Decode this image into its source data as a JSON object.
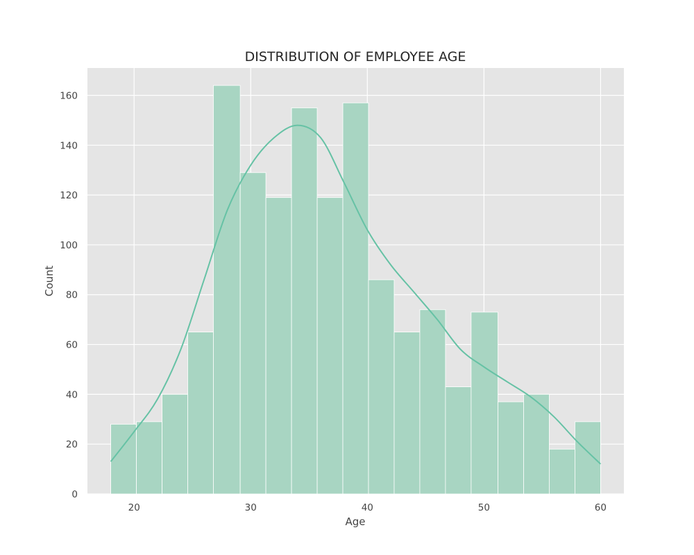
{
  "chart_data": {
    "type": "bar",
    "subtype": "histogram",
    "title": "DISTRIBUTION OF EMPLOYEE AGE",
    "xlabel": "Age",
    "ylabel": "Count",
    "xlim": [
      16,
      62
    ],
    "ylim": [
      0,
      171
    ],
    "xticks": [
      20,
      30,
      40,
      50,
      60
    ],
    "yticks": [
      0,
      20,
      40,
      60,
      80,
      100,
      120,
      140,
      160
    ],
    "grid": true,
    "bins": [
      {
        "start": 18.0,
        "end": 20.2,
        "count": 28
      },
      {
        "start": 20.2,
        "end": 22.4,
        "count": 29
      },
      {
        "start": 22.4,
        "end": 24.6,
        "count": 40
      },
      {
        "start": 24.6,
        "end": 26.8,
        "count": 65
      },
      {
        "start": 26.8,
        "end": 29.1,
        "count": 164
      },
      {
        "start": 29.1,
        "end": 31.3,
        "count": 129
      },
      {
        "start": 31.3,
        "end": 33.5,
        "count": 119
      },
      {
        "start": 33.5,
        "end": 35.7,
        "count": 155
      },
      {
        "start": 35.7,
        "end": 37.9,
        "count": 119
      },
      {
        "start": 37.9,
        "end": 40.1,
        "count": 157
      },
      {
        "start": 40.1,
        "end": 42.3,
        "count": 86
      },
      {
        "start": 42.3,
        "end": 44.5,
        "count": 65
      },
      {
        "start": 44.5,
        "end": 46.7,
        "count": 74
      },
      {
        "start": 46.7,
        "end": 48.9,
        "count": 43
      },
      {
        "start": 48.9,
        "end": 51.2,
        "count": 73
      },
      {
        "start": 51.2,
        "end": 53.4,
        "count": 37
      },
      {
        "start": 53.4,
        "end": 55.6,
        "count": 40
      },
      {
        "start": 55.6,
        "end": 57.8,
        "count": 18
      },
      {
        "start": 57.8,
        "end": 60.0,
        "count": 29
      }
    ],
    "kde": {
      "x": [
        18,
        20,
        22,
        24,
        26,
        28,
        30,
        32,
        34,
        36,
        38,
        40,
        42,
        44,
        46,
        48,
        50,
        52,
        54,
        56,
        58,
        60
      ],
      "y": [
        13,
        25,
        38,
        58,
        86,
        114,
        132,
        143,
        148,
        143,
        125,
        106,
        92,
        81,
        70,
        58,
        51,
        45,
        39,
        31,
        21,
        12
      ]
    },
    "colors": {
      "bar_fill": "#a8d5c2",
      "bar_edge": "#ffffff",
      "kde_line": "#66c2a5",
      "plot_background": "#e5e5e5",
      "grid": "#ffffff"
    }
  }
}
